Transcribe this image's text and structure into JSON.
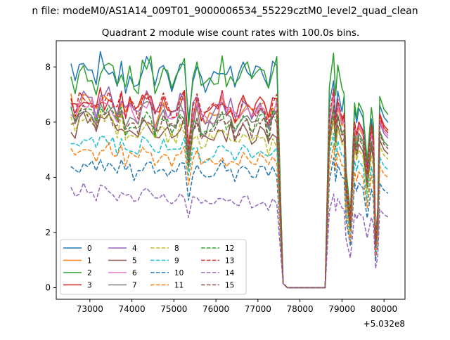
{
  "figure": {
    "suptitle": "n file: modeM0/AS1A14_009T01_9000006534_55229cztM0_level2_quad_clean",
    "offset_text": "+5.032e8"
  },
  "chart_data": {
    "type": "line",
    "title": "Quadrant 2 module wise count rates with 100.0s bins.",
    "xlabel": "",
    "ylabel": "",
    "x_offset": 503200000,
    "xlim": [
      72200,
      80500
    ],
    "ylim": [
      -0.42,
      8.95
    ],
    "x_ticks": [
      73000,
      74000,
      75000,
      76000,
      77000,
      78000,
      79000,
      80000
    ],
    "x_tick_labels": [
      "73000",
      "74000",
      "75000",
      "76000",
      "77000",
      "78000",
      "79000",
      "80000"
    ],
    "y_ticks": [
      0,
      2,
      4,
      6,
      8
    ],
    "y_tick_labels": [
      "0",
      "2",
      "4",
      "6",
      "8"
    ],
    "grid": false,
    "legend_position": "lower-left",
    "legend_columns": 4,
    "x_segments": [
      [
        72550,
        77450
      ],
      [
        77500,
        77700
      ],
      [
        78600,
        79100
      ],
      [
        79150,
        79500
      ],
      [
        79550,
        80100
      ]
    ],
    "series": [
      {
        "name": "0",
        "color": "#1f77b4",
        "dash": "solid",
        "levels": [
          7.8,
          7.6,
          6.8,
          7.5,
          6.8,
          6.5,
          6.0,
          6.3
        ]
      },
      {
        "name": "1",
        "color": "#ff7f0e",
        "dash": "solid",
        "levels": [
          6.6,
          6.3,
          6.0,
          6.9,
          6.0,
          5.8,
          5.6,
          5.9
        ]
      },
      {
        "name": "2",
        "color": "#2ca02c",
        "dash": "solid",
        "levels": [
          7.6,
          7.7,
          7.2,
          8.5,
          6.9,
          6.7,
          6.4,
          6.6
        ]
      },
      {
        "name": "3",
        "color": "#d62728",
        "dash": "solid",
        "levels": [
          6.6,
          6.4,
          6.0,
          7.1,
          6.1,
          6.0,
          5.8,
          6.0
        ]
      },
      {
        "name": "4",
        "color": "#9467bd",
        "dash": "solid",
        "levels": [
          6.8,
          6.2,
          6.0,
          7.0,
          6.0,
          5.9,
          5.5,
          5.7
        ]
      },
      {
        "name": "5",
        "color": "#8c564b",
        "dash": "solid",
        "levels": [
          5.8,
          5.5,
          5.3,
          6.2,
          5.3,
          5.2,
          5.0,
          5.1
        ]
      },
      {
        "name": "6",
        "color": "#e377c2",
        "dash": "solid",
        "levels": [
          6.4,
          6.3,
          6.0,
          7.0,
          6.0,
          5.9,
          5.6,
          5.8
        ]
      },
      {
        "name": "7",
        "color": "#7f7f7f",
        "dash": "solid",
        "levels": [
          6.2,
          6.0,
          5.7,
          6.6,
          5.6,
          5.6,
          5.2,
          5.4
        ]
      },
      {
        "name": "8",
        "color": "#bcbd22",
        "dash": "dashed",
        "levels": [
          6.0,
          5.2,
          5.0,
          6.1,
          5.1,
          5.0,
          4.7,
          4.9
        ]
      },
      {
        "name": "9",
        "color": "#17becf",
        "dash": "dashed",
        "levels": [
          5.2,
          4.8,
          4.7,
          5.6,
          4.7,
          4.6,
          4.3,
          4.5
        ]
      },
      {
        "name": "10",
        "color": "#1f77b4",
        "dash": "dashed",
        "levels": [
          4.3,
          4.1,
          3.9,
          4.7,
          3.9,
          3.8,
          3.5,
          3.6
        ]
      },
      {
        "name": "11",
        "color": "#ff7f0e",
        "dash": "dashed",
        "levels": [
          4.9,
          4.5,
          4.4,
          5.2,
          4.3,
          4.2,
          4.0,
          4.2
        ]
      },
      {
        "name": "12",
        "color": "#2ca02c",
        "dash": "dashed",
        "levels": [
          6.1,
          5.9,
          5.6,
          6.6,
          5.6,
          5.5,
          5.2,
          5.4
        ]
      },
      {
        "name": "13",
        "color": "#d62728",
        "dash": "dashed",
        "levels": [
          6.7,
          6.5,
          6.2,
          7.2,
          6.2,
          6.0,
          5.7,
          5.9
        ]
      },
      {
        "name": "14",
        "color": "#9467bd",
        "dash": "dashed",
        "levels": [
          3.5,
          3.0,
          2.8,
          3.4,
          2.8,
          2.7,
          2.5,
          2.7
        ]
      },
      {
        "name": "15",
        "color": "#8c564b",
        "dash": "dashed",
        "levels": [
          6.0,
          5.8,
          5.5,
          6.5,
          5.5,
          5.4,
          5.1,
          5.3
        ]
      }
    ]
  }
}
